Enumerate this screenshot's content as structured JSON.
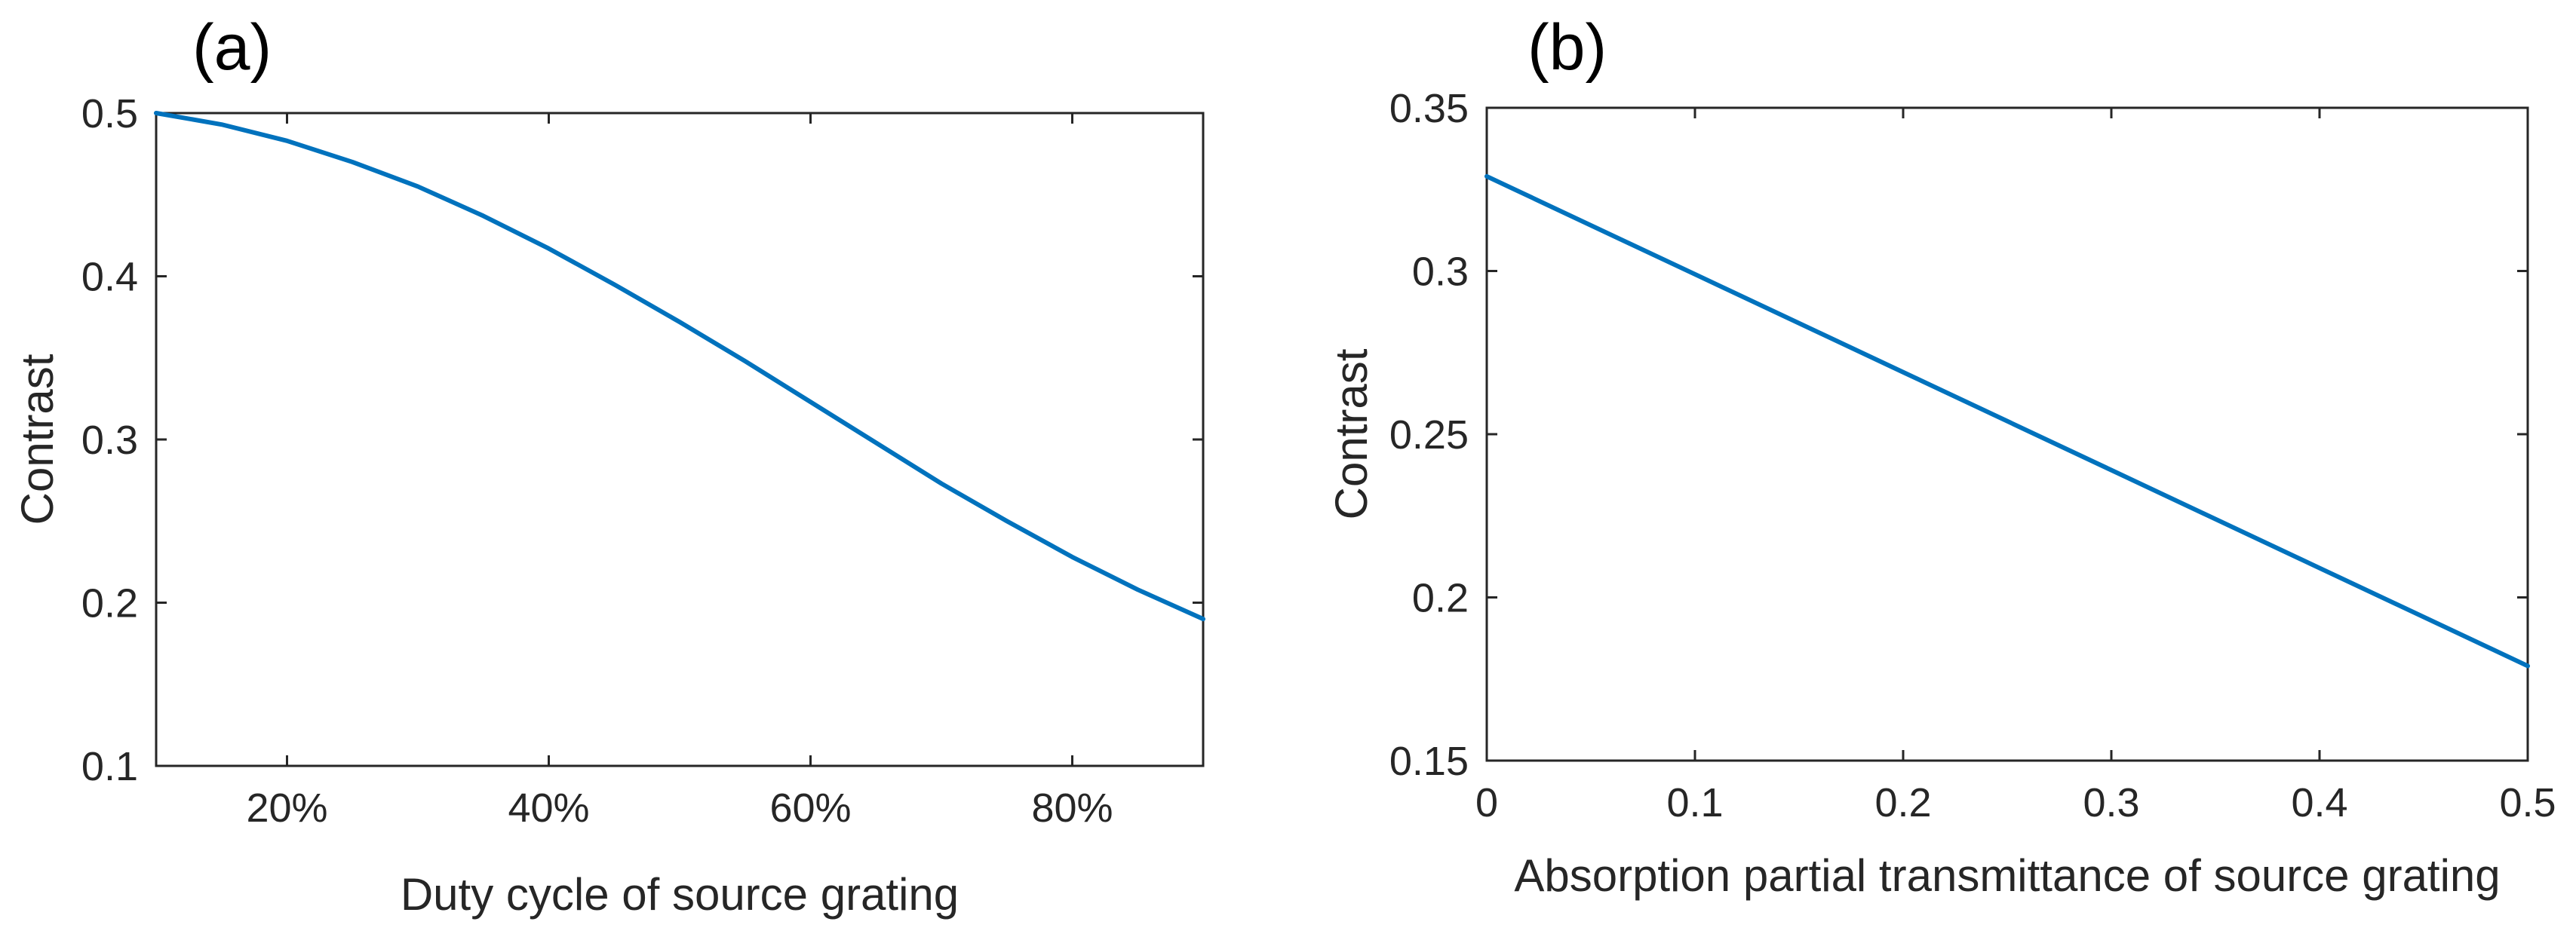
{
  "chart_data": [
    {
      "type": "line",
      "panel_label": "(a)",
      "title": "",
      "xlabel": "Duty cycle of source grating",
      "ylabel": "Contrast",
      "xlim": [
        0.1,
        0.9
      ],
      "ylim": [
        0.1,
        0.5
      ],
      "xticks": [
        0.2,
        0.4,
        0.6,
        0.8
      ],
      "xtick_labels": [
        "20%",
        "40%",
        "60%",
        "80%"
      ],
      "yticks": [
        0.1,
        0.2,
        0.3,
        0.4,
        0.5
      ],
      "ytick_labels": [
        "0.1",
        "0.2",
        "0.3",
        "0.4",
        "0.5"
      ],
      "grid": false,
      "series": [
        {
          "name": "Contrast",
          "color": "#0072BD",
          "x": [
            0.1,
            0.15,
            0.2,
            0.25,
            0.3,
            0.35,
            0.4,
            0.45,
            0.5,
            0.55,
            0.6,
            0.65,
            0.7,
            0.75,
            0.8,
            0.85,
            0.9
          ],
          "y": [
            0.5,
            0.493,
            0.483,
            0.47,
            0.455,
            0.437,
            0.417,
            0.395,
            0.372,
            0.348,
            0.323,
            0.298,
            0.273,
            0.25,
            0.228,
            0.208,
            0.19
          ]
        }
      ]
    },
    {
      "type": "line",
      "panel_label": "(b)",
      "title": "",
      "xlabel": "Absorption partial transmittance of source grating",
      "ylabel": "Contrast",
      "xlim": [
        0,
        0.5
      ],
      "ylim": [
        0.15,
        0.35
      ],
      "xticks": [
        0,
        0.1,
        0.2,
        0.3,
        0.4,
        0.5
      ],
      "xtick_labels": [
        "0",
        "0.1",
        "0.2",
        "0.3",
        "0.4",
        "0.5"
      ],
      "yticks": [
        0.15,
        0.2,
        0.25,
        0.3,
        0.35
      ],
      "ytick_labels": [
        "0.15",
        "0.2",
        "0.25",
        "0.3",
        "0.35"
      ],
      "grid": false,
      "series": [
        {
          "name": "Contrast",
          "color": "#0072BD",
          "x": [
            0,
            0.1,
            0.2,
            0.3,
            0.4,
            0.5
          ],
          "y": [
            0.329,
            0.299,
            0.269,
            0.239,
            0.209,
            0.179
          ]
        }
      ]
    }
  ]
}
